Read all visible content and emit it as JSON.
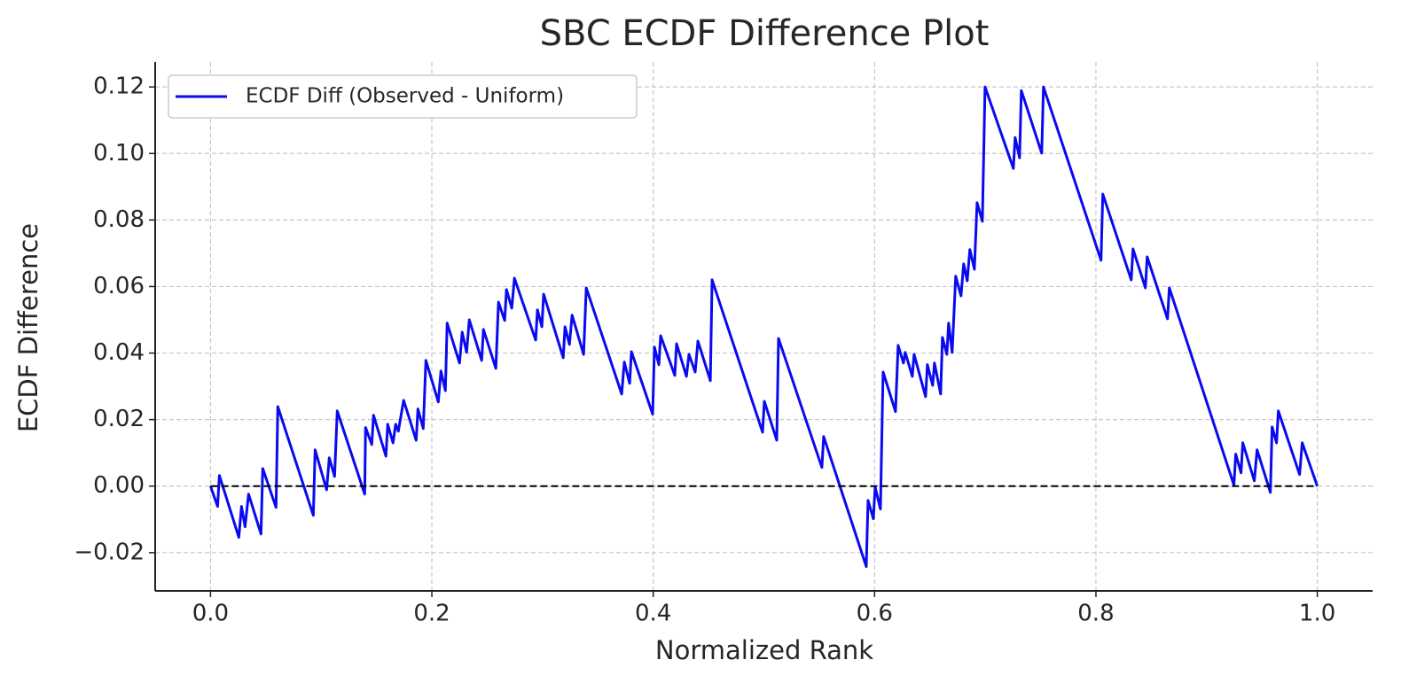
{
  "chart_data": {
    "type": "line",
    "title": "SBC ECDF Difference Plot",
    "xlabel": "Normalized Rank",
    "ylabel": "ECDF Difference",
    "x": [
      0,
      0.0064,
      0.008,
      0.0256,
      0.028,
      0.0312,
      0.0344,
      0.0456,
      0.0472,
      0.0592,
      0.0608,
      0.0929,
      0.0945,
      0.1049,
      0.1073,
      0.1121,
      0.1145,
      0.1393,
      0.1401,
      0.1457,
      0.1473,
      0.1585,
      0.1601,
      0.1649,
      0.1673,
      0.1697,
      0.1745,
      0.1858,
      0.1874,
      0.1922,
      0.1946,
      0.2058,
      0.2082,
      0.2122,
      0.2138,
      0.225,
      0.2274,
      0.2314,
      0.2338,
      0.245,
      0.2466,
      0.2578,
      0.2602,
      0.2658,
      0.2674,
      0.2722,
      0.2746,
      0.2938,
      0.2954,
      0.2994,
      0.301,
      0.3187,
      0.3203,
      0.3243,
      0.3267,
      0.3371,
      0.3395,
      0.3715,
      0.3739,
      0.3787,
      0.3803,
      0.3995,
      0.4011,
      0.4051,
      0.4067,
      0.4195,
      0.4211,
      0.43,
      0.4323,
      0.4379,
      0.4404,
      0.4516,
      0.4532,
      0.4988,
      0.5004,
      0.5116,
      0.5132,
      0.5524,
      0.554,
      0.5925,
      0.5941,
      0.5989,
      0.6005,
      0.6053,
      0.6077,
      0.6189,
      0.6213,
      0.6261,
      0.6277,
      0.6341,
      0.6357,
      0.6461,
      0.6477,
      0.6525,
      0.6541,
      0.6597,
      0.6613,
      0.6653,
      0.6669,
      0.6701,
      0.6733,
      0.6781,
      0.6805,
      0.6837,
      0.6861,
      0.6902,
      0.6926,
      0.6974,
      0.6998,
      0.7254,
      0.727,
      0.731,
      0.7326,
      0.751,
      0.7526,
      0.8046,
      0.8062,
      0.8319,
      0.8335,
      0.8447,
      0.8463,
      0.8647,
      0.8663,
      0.9247,
      0.9263,
      0.9311,
      0.9327,
      0.9431,
      0.9456,
      0.9576,
      0.9592,
      0.9632,
      0.9648,
      0.984,
      0.9864,
      1.0
    ],
    "series": [
      {
        "name": "ECDF Diff (Observed - Uniform)",
        "color": "#0a0af0",
        "values": [
          0,
          -0.0061,
          0.0032,
          -0.0154,
          -0.0061,
          -0.0122,
          -0.0024,
          -0.0144,
          0.0053,
          -0.0064,
          0.0239,
          -0.0088,
          0.0109,
          -0.0011,
          0.0085,
          0.0029,
          0.0226,
          -0.0024,
          0.0176,
          0.0125,
          0.0213,
          0.009,
          0.0186,
          0.013,
          0.0186,
          0.0165,
          0.0258,
          0.0138,
          0.0232,
          0.0173,
          0.0378,
          0.0253,
          0.0346,
          0.0287,
          0.049,
          0.037,
          0.0463,
          0.0402,
          0.05,
          0.0378,
          0.0471,
          0.0354,
          0.0553,
          0.0498,
          0.0591,
          0.0535,
          0.0625,
          0.0439,
          0.053,
          0.0479,
          0.0577,
          0.0386,
          0.0479,
          0.0426,
          0.0514,
          0.0396,
          0.0596,
          0.0277,
          0.0373,
          0.0309,
          0.0404,
          0.0216,
          0.0418,
          0.0365,
          0.0452,
          0.0333,
          0.0428,
          0.033,
          0.0396,
          0.0343,
          0.0436,
          0.0317,
          0.062,
          0.0162,
          0.0255,
          0.0138,
          0.0444,
          0.0056,
          0.0149,
          -0.0242,
          -0.0043,
          -0.0098,
          -0.0003,
          -0.0069,
          0.0343,
          0.0224,
          0.0423,
          0.037,
          0.0402,
          0.033,
          0.0396,
          0.0269,
          0.0365,
          0.0303,
          0.037,
          0.0277,
          0.0447,
          0.0396,
          0.049,
          0.0402,
          0.0631,
          0.0572,
          0.0668,
          0.0617,
          0.0711,
          0.0652,
          0.0852,
          0.0796,
          0.12,
          0.0955,
          0.1048,
          0.0987,
          0.1189,
          0.1001,
          0.12,
          0.0679,
          0.0878,
          0.062,
          0.0713,
          0.0596,
          0.0689,
          0.0503,
          0.0596,
          0.0003,
          0.0096,
          0.004,
          0.013,
          0.0016,
          0.0109,
          -0.0019,
          0.0178,
          0.013,
          0.0226,
          0.0035,
          0.013,
          0
        ]
      }
    ],
    "hline": 0,
    "xlim": [
      -0.05,
      1.05
    ],
    "ylim": [
      -0.0315,
      0.1275
    ],
    "xticks": [
      {
        "value": 0,
        "label": "0.0"
      },
      0.2,
      0.4,
      0.6,
      0.8,
      {
        "value": 1,
        "label": "1.0"
      }
    ],
    "yticks": [
      {
        "value": -0.02,
        "label": "−0.02"
      },
      {
        "value": 0,
        "label": "0.00"
      },
      0.02,
      0.04,
      0.06,
      0.08,
      {
        "value": 0.1,
        "label": "0.10"
      },
      0.12
    ],
    "grid": true,
    "legend": "upper left"
  }
}
